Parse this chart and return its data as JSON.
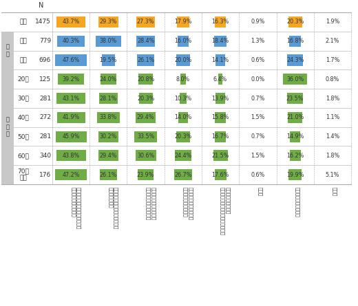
{
  "rows": [
    {
      "label": "全体",
      "n": "1475",
      "group": "全体",
      "values": [
        43.7,
        29.3,
        27.3,
        17.9,
        16.3,
        0.9,
        20.3,
        1.9
      ],
      "color_type": "orange"
    },
    {
      "label": "男性",
      "n": "779",
      "group": "性別",
      "values": [
        40.3,
        38.0,
        28.4,
        16.0,
        18.4,
        1.3,
        16.8,
        2.1
      ],
      "color_type": "blue"
    },
    {
      "label": "女性",
      "n": "696",
      "group": "性別",
      "values": [
        47.6,
        19.5,
        26.1,
        20.0,
        14.1,
        0.6,
        24.3,
        1.7
      ],
      "color_type": "blue"
    },
    {
      "label": "20代",
      "n": "125",
      "group": "年代別",
      "values": [
        39.2,
        24.0,
        20.8,
        8.0,
        6.4,
        0.0,
        36.0,
        0.8
      ],
      "color_type": "green"
    },
    {
      "label": "30代",
      "n": "281",
      "group": "年代別",
      "values": [
        43.1,
        28.1,
        20.3,
        10.3,
        13.9,
        0.7,
        23.5,
        1.8
      ],
      "color_type": "green"
    },
    {
      "label": "40代",
      "n": "272",
      "group": "年代別",
      "values": [
        41.9,
        33.8,
        29.4,
        14.0,
        15.8,
        1.5,
        21.0,
        1.1
      ],
      "color_type": "green"
    },
    {
      "label": "50代",
      "n": "281",
      "group": "年代別",
      "values": [
        45.9,
        30.2,
        33.5,
        20.3,
        16.7,
        0.7,
        14.9,
        1.4
      ],
      "color_type": "green"
    },
    {
      "label": "60代",
      "n": "340",
      "group": "年代別",
      "values": [
        43.8,
        29.4,
        30.6,
        24.4,
        21.5,
        1.5,
        16.2,
        1.8
      ],
      "color_type": "green"
    },
    {
      "label": "70歳\n以上",
      "n": "176",
      "group": "年代別",
      "values": [
        47.2,
        26.1,
        23.9,
        26.7,
        17.6,
        0.6,
        19.9,
        5.1
      ],
      "color_type": "green"
    }
  ],
  "col_labels": [
    "元本保証のあるものを選びたい\nリターンは少なくても",
    "株式や投資信託購入のチャンス\n株価下落の今、",
    "金融商品に分散させたい\n資産はいろいろな種類の",
    "商品の保有は減らしたい\n元本割れリスクのある",
    "特に気にしていない\n投資信託は長期運用するものので、",
    "その他",
    "特にない・わからない",
    "無回答"
  ],
  "colors": {
    "orange": "#F5A623",
    "blue": "#5B9BD5",
    "green": "#70AD47",
    "gray_bg": "#C8C8C8",
    "line": "#AAAAAA",
    "text": "#333333"
  },
  "no_bar_cols": [
    5,
    7
  ],
  "bar_color_cols": [
    0,
    1,
    2,
    3,
    4,
    6
  ],
  "fig_width": 5.2,
  "fig_height": 4.45,
  "dpi": 100
}
